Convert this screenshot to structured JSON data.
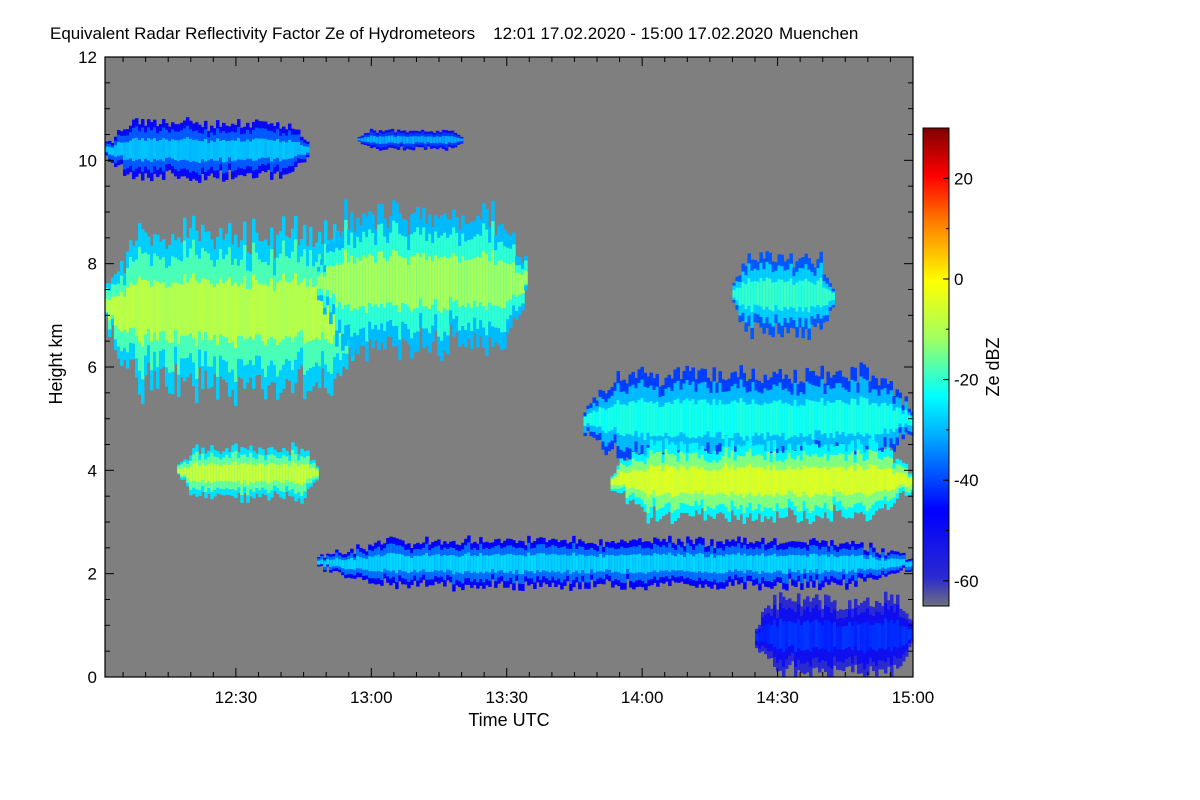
{
  "chart_data": {
    "type": "heatmap",
    "title": "Equivalent Radar Reflectivity Factor Ze of Hydrometeors",
    "time_range": "12:01 17.02.2020 - 15:00 17.02.2020",
    "location": "Muenchen",
    "xlabel": "Time UTC",
    "ylabel": "Height km",
    "x_ticks": [
      "12:30",
      "13:00",
      "13:30",
      "14:00",
      "14:30",
      "15:00"
    ],
    "x_tick_minutes": [
      30,
      60,
      90,
      120,
      150,
      180
    ],
    "xlim_minutes": [
      1,
      180
    ],
    "y_ticks": [
      "0",
      "2",
      "4",
      "6",
      "8",
      "10",
      "12"
    ],
    "y_tick_values": [
      0,
      2,
      4,
      6,
      8,
      10,
      12
    ],
    "ylim_km": [
      0,
      12
    ],
    "colorbar": {
      "label": "Ze dBZ",
      "ticks": [
        "20",
        "0",
        "-20",
        "-40",
        "-60"
      ],
      "tick_values": [
        20,
        0,
        -20,
        -40,
        -60
      ],
      "range": [
        -65,
        30
      ],
      "background_color": "#7f7f7f"
    },
    "features": [
      {
        "t_start": 1,
        "t_end": 46,
        "h_bottom": 9.6,
        "h_top": 10.8,
        "ze": -30
      },
      {
        "t_start": 57,
        "t_end": 80,
        "h_bottom": 10.2,
        "h_top": 10.6,
        "ze": -32
      },
      {
        "t_start": 1,
        "t_end": 58,
        "h_bottom": 5.4,
        "h_top": 8.8,
        "ze": -10
      },
      {
        "t_start": 48,
        "t_end": 94,
        "h_bottom": 6.2,
        "h_top": 9.1,
        "ze": -12
      },
      {
        "t_start": 17,
        "t_end": 48,
        "h_bottom": 3.4,
        "h_top": 4.5,
        "ze": -8
      },
      {
        "t_start": 107,
        "t_end": 180,
        "h_bottom": 4.0,
        "h_top": 6.0,
        "ze": -22
      },
      {
        "t_start": 113,
        "t_end": 180,
        "h_bottom": 3.0,
        "h_top": 4.6,
        "ze": -6
      },
      {
        "t_start": 140,
        "t_end": 162,
        "h_bottom": 6.6,
        "h_top": 8.2,
        "ze": -20
      },
      {
        "t_start": 48,
        "t_end": 180,
        "h_bottom": 1.7,
        "h_top": 2.7,
        "ze": -28
      },
      {
        "t_start": 145,
        "t_end": 180,
        "h_bottom": 0.0,
        "h_top": 1.6,
        "ze": -42
      }
    ]
  }
}
